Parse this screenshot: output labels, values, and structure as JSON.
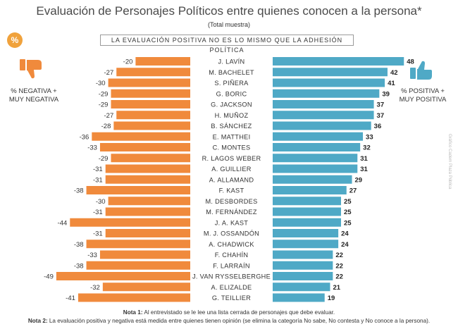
{
  "header": {
    "title": "Evaluación de Personajes Políticos entre quienes conocen a la persona*",
    "subtitle": "(Total muestra)",
    "banner": "LA EVALUACIÓN POSITIVA NO ES LO MISMO QUE LA ADHESIÓN POLÍTICA",
    "badge": "%"
  },
  "left_legend": {
    "line1": "% NEGATIVA +",
    "line2": "MUY NEGATIVA",
    "icon": "thumbs-down-icon"
  },
  "right_legend": {
    "line1": "% POSITIVA +",
    "line2": "MUY POSITIVA",
    "icon": "thumbs-up-icon"
  },
  "notes": {
    "nota1_label": "Nota 1:",
    "nota1_text": "Al entrevistado se le lee una lista cerrada de personajes que debe evaluar.",
    "nota2_label": "Nota 2:",
    "nota2_text": "La evaluación positiva y negativa está medida entre quienes tienen opinión (se elimina la categoría No sabe, No contesta y No conoce a la persona)."
  },
  "credit": "Gráfico Cadem Plaza Pública",
  "colors": {
    "negative": "#f08a3c",
    "positive": "#4fa9c6",
    "icon": "#4fa9c6",
    "icon_negative": "#f08a3c"
  },
  "chart_data": {
    "type": "bar",
    "categories": [
      "J. LAVÍN",
      "M. BACHELET",
      "S. PIÑERA",
      "G. BORIC",
      "G. JACKSON",
      "H. MUÑOZ",
      "B. SÁNCHEZ",
      "E. MATTHEI",
      "C. MONTES",
      "R. LAGOS WEBER",
      "A. GUILLIER",
      "A. ALLAMAND",
      "F. KAST",
      "M. DESBORDES",
      "M. FERNÁNDEZ",
      "J. A. KAST",
      "M. J. OSSANDÓN",
      "A. CHADWICK",
      "F. CHAHÍN",
      "F. LARRAÍN",
      "J. VAN RYSSELBERGHE",
      "A. ELIZALDE",
      "G. TEILLIER"
    ],
    "series": [
      {
        "values": [
          -20,
          -27,
          -30,
          -29,
          -29,
          -27,
          -28,
          -36,
          -33,
          -29,
          -31,
          -31,
          -38,
          -30,
          -31,
          -44,
          -31,
          -38,
          -33,
          -38,
          -49,
          -32,
          -41
        ]
      },
      {
        "values": [
          48,
          42,
          41,
          39,
          37,
          37,
          36,
          33,
          32,
          31,
          31,
          29,
          27,
          25,
          25,
          25,
          24,
          24,
          22,
          22,
          22,
          21,
          19
        ]
      }
    ],
    "labels": {
      "negative": [
        "-20",
        "-27",
        "-30",
        "-29",
        "-29",
        "-27",
        "-28",
        "-36",
        "-33",
        "-29",
        "-31",
        "-31",
        "-38",
        "-30",
        "-31",
        "-44",
        "-31",
        "-38",
        "-33",
        "-38",
        "-49",
        "-32",
        "-41"
      ],
      "positive": [
        "48",
        "42",
        "41",
        "39",
        "37",
        "37",
        "36",
        "33",
        "32",
        "31",
        "31",
        "29",
        "27",
        "25",
        "25",
        "25",
        "24",
        "24",
        "22",
        "22",
        "22",
        "21",
        "19"
      ]
    }
  }
}
